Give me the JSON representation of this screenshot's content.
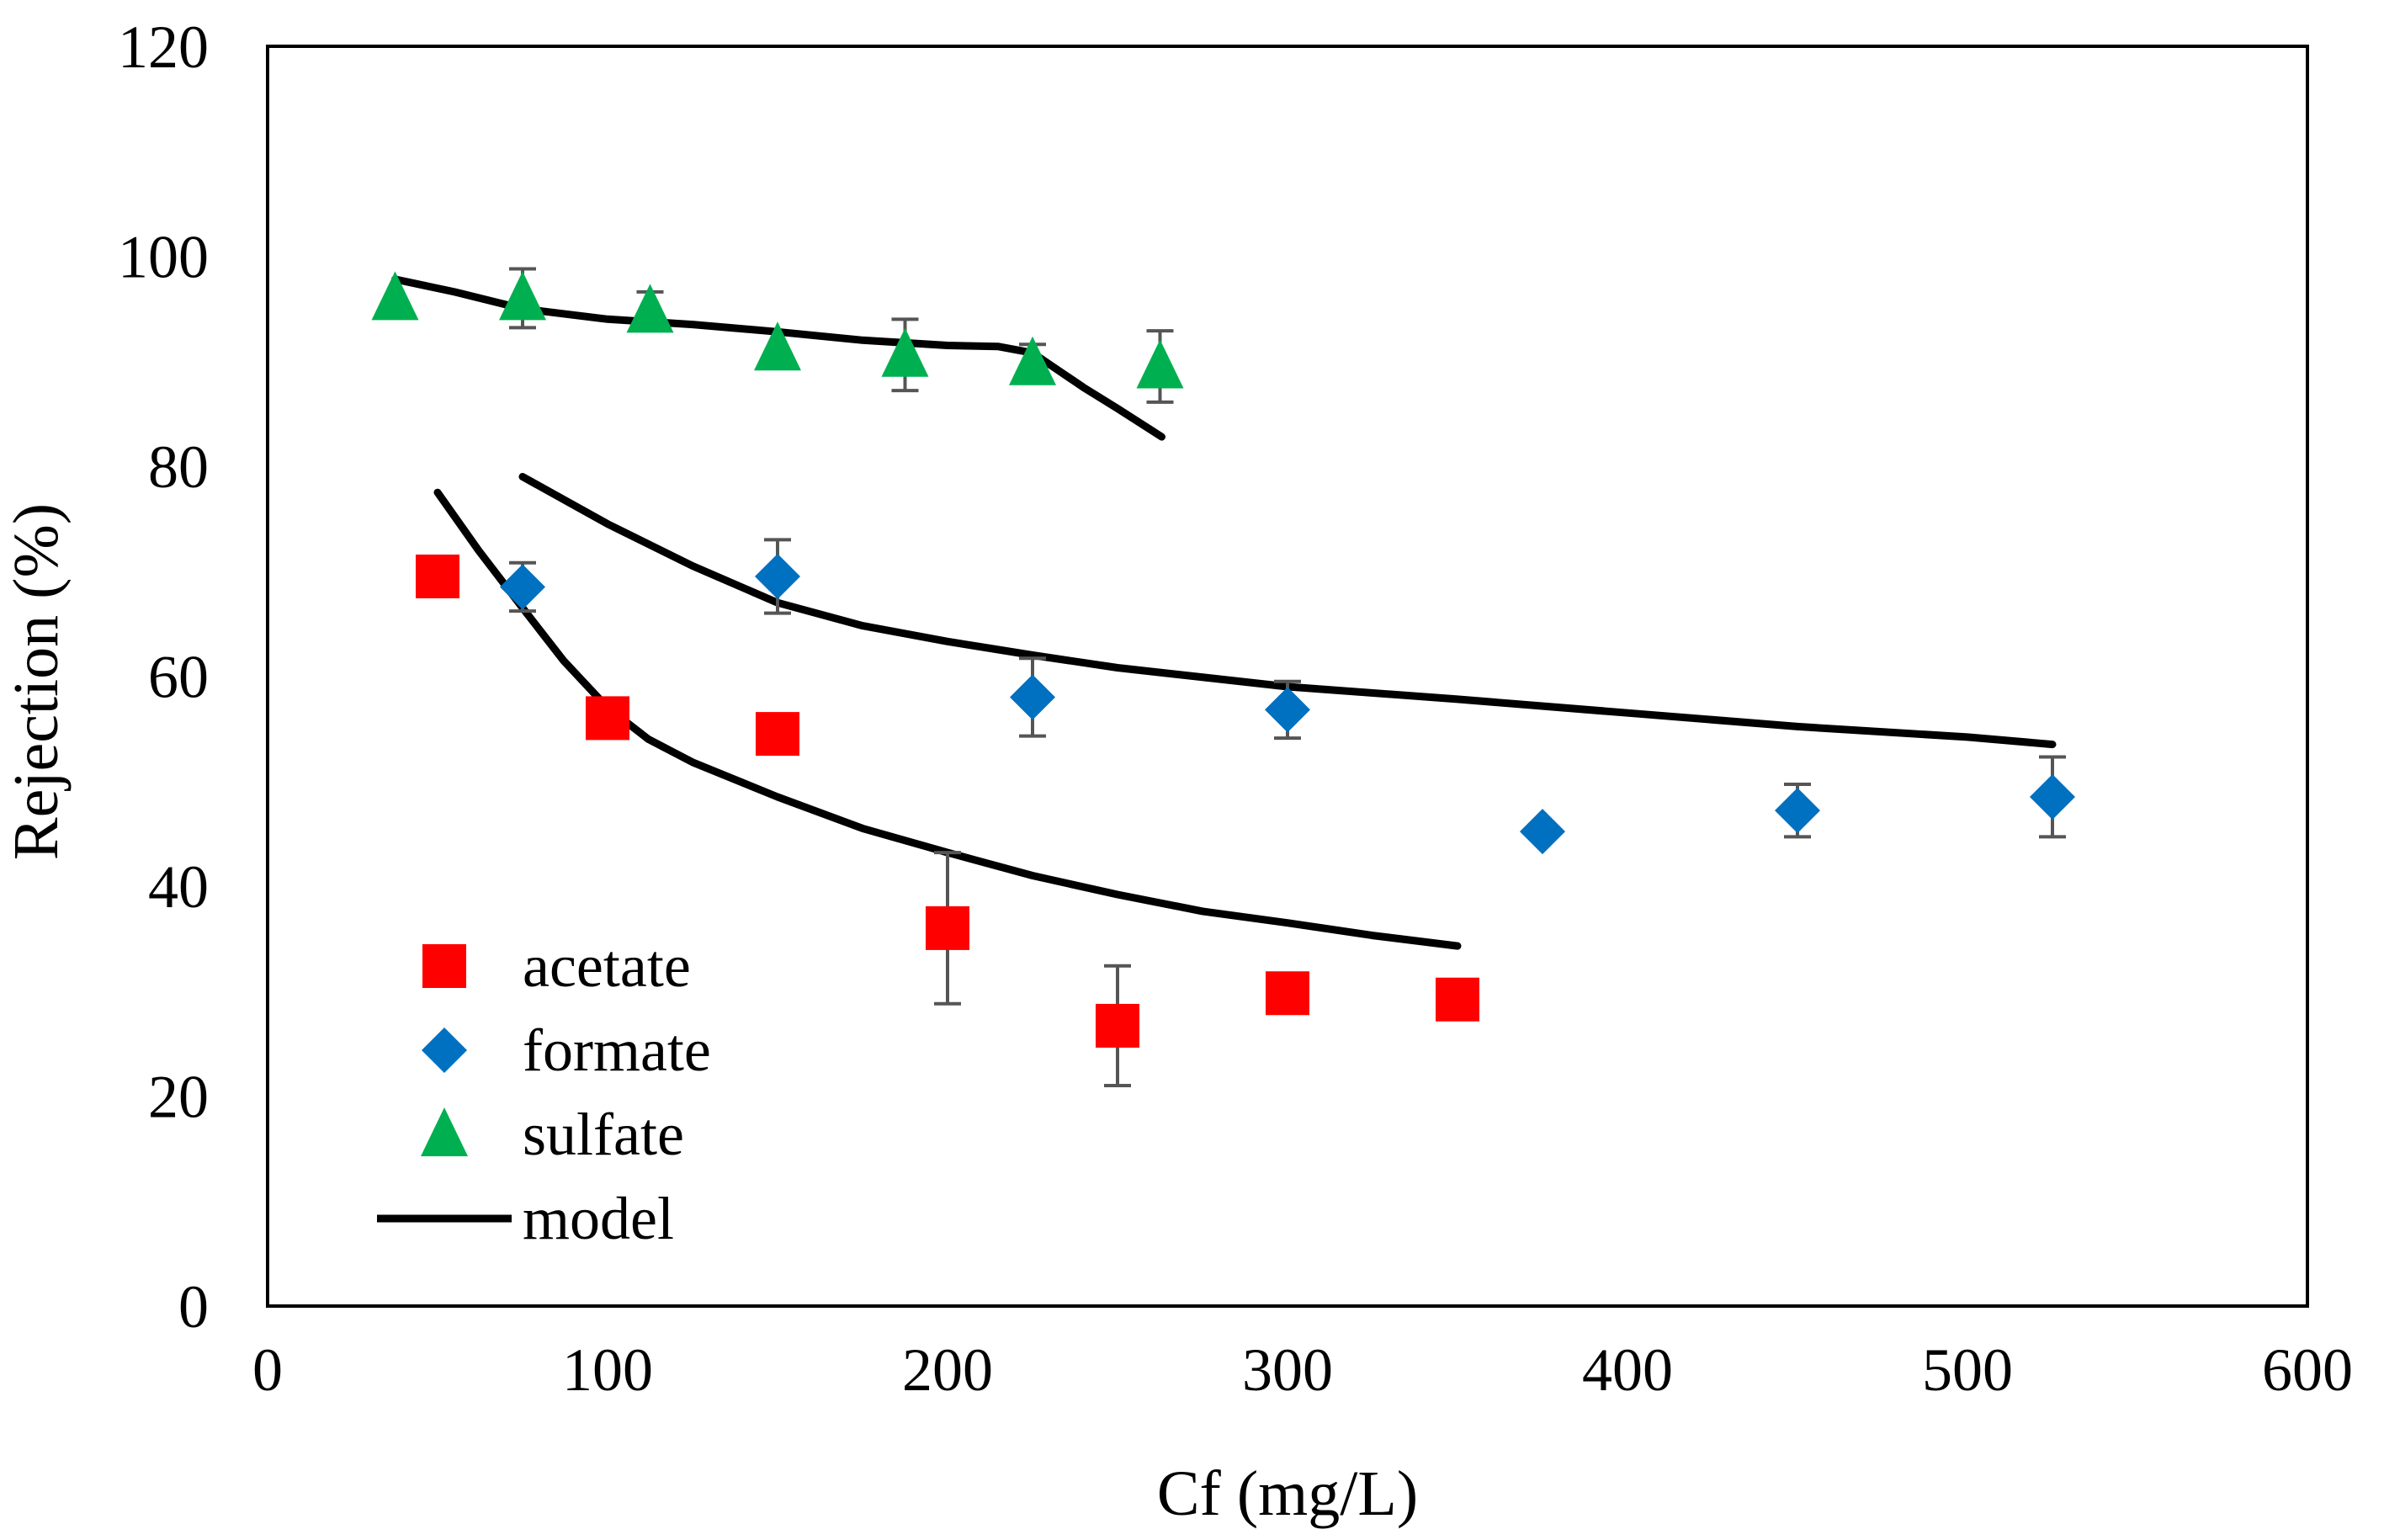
{
  "chart_data": {
    "type": "scatter",
    "title": "",
    "xlabel": "Cf (mg/L)",
    "ylabel": "Rejection (%)",
    "xlim": [
      0,
      600
    ],
    "ylim": [
      0,
      120
    ],
    "xticks": [
      0,
      100,
      200,
      300,
      400,
      500,
      600
    ],
    "yticks": [
      0,
      20,
      40,
      60,
      80,
      100,
      120
    ],
    "xtick_labels": [
      "0",
      "100",
      "200",
      "300",
      "400",
      "500",
      "600"
    ],
    "ytick_labels": [
      "0",
      "20",
      "40",
      "60",
      "80",
      "100",
      "120"
    ],
    "grid": false,
    "legend_position": "bottom-left",
    "series": [
      {
        "name": "acetate",
        "marker": "square",
        "color": "#ff0000",
        "error_color": "#555555",
        "points": [
          {
            "x": 50,
            "y": 69.5,
            "err": 0
          },
          {
            "x": 100,
            "y": 56,
            "err": 0
          },
          {
            "x": 150,
            "y": 54.5,
            "err": 0
          },
          {
            "x": 200,
            "y": 36,
            "err": 7.2
          },
          {
            "x": 250,
            "y": 26.7,
            "err": 5.7
          },
          {
            "x": 300,
            "y": 29.8,
            "err": 0
          },
          {
            "x": 350,
            "y": 29.2,
            "err": 0
          }
        ]
      },
      {
        "name": "formate",
        "marker": "diamond",
        "color": "#0070c0",
        "error_color": "#555555",
        "points": [
          {
            "x": 75,
            "y": 68.5,
            "err": 2.3
          },
          {
            "x": 150,
            "y": 69.5,
            "err": 3.5
          },
          {
            "x": 225,
            "y": 58,
            "err": 3.7
          },
          {
            "x": 300,
            "y": 56.8,
            "err": 2.7
          },
          {
            "x": 375,
            "y": 45.2,
            "err": 0
          },
          {
            "x": 450,
            "y": 47.2,
            "err": 2.5
          },
          {
            "x": 525,
            "y": 48.5,
            "err": 3.8
          }
        ]
      },
      {
        "name": "sulfate",
        "marker": "triangle",
        "color": "#00b050",
        "error_color": "#555555",
        "points": [
          {
            "x": 37.5,
            "y": 96,
            "err": 0
          },
          {
            "x": 75,
            "y": 96,
            "err": 2.8
          },
          {
            "x": 112.5,
            "y": 94.8,
            "err": 1.8
          },
          {
            "x": 150,
            "y": 91.2,
            "err": 0
          },
          {
            "x": 187.5,
            "y": 90.6,
            "err": 3.4
          },
          {
            "x": 225,
            "y": 89.8,
            "err": 1.8
          },
          {
            "x": 262.5,
            "y": 89.5,
            "err": 3.4
          }
        ]
      }
    ],
    "model": {
      "name": "model",
      "color": "#000000",
      "curves": [
        {
          "for": "sulfate",
          "points": [
            [
              37.5,
              97.8
            ],
            [
              55,
              96.6
            ],
            [
              75,
              95
            ],
            [
              100,
              94
            ],
            [
              125,
              93.5
            ],
            [
              150,
              92.8
            ],
            [
              175,
              92
            ],
            [
              200,
              91.5
            ],
            [
              215,
              91.4
            ],
            [
              225,
              90.8
            ],
            [
              240,
              87.5
            ],
            [
              250,
              85.5
            ],
            [
              263,
              82.8
            ]
          ]
        },
        {
          "for": "formate",
          "points": [
            [
              75,
              79
            ],
            [
              100,
              74.5
            ],
            [
              125,
              70.5
            ],
            [
              150,
              67
            ],
            [
              175,
              64.8
            ],
            [
              200,
              63.3
            ],
            [
              225,
              62
            ],
            [
              250,
              60.8
            ],
            [
              300,
              59
            ],
            [
              350,
              57.8
            ],
            [
              400,
              56.5
            ],
            [
              450,
              55.2
            ],
            [
              500,
              54.2
            ],
            [
              525,
              53.5
            ]
          ]
        },
        {
          "for": "acetate",
          "points": [
            [
              50,
              77.5
            ],
            [
              62,
              72
            ],
            [
              75,
              66.5
            ],
            [
              87,
              61.5
            ],
            [
              100,
              57
            ],
            [
              112,
              54
            ],
            [
              125,
              51.8
            ],
            [
              150,
              48.5
            ],
            [
              175,
              45.5
            ],
            [
              200,
              43.2
            ],
            [
              225,
              41
            ],
            [
              250,
              39.2
            ],
            [
              275,
              37.6
            ],
            [
              300,
              36.5
            ],
            [
              325,
              35.3
            ],
            [
              350,
              34.3
            ]
          ]
        }
      ]
    },
    "legend": [
      {
        "label": "acetate",
        "marker": "square",
        "color": "#ff0000"
      },
      {
        "label": "formate",
        "marker": "diamond",
        "color": "#0070c0"
      },
      {
        "label": "sulfate",
        "marker": "triangle",
        "color": "#00b050"
      },
      {
        "label": "model",
        "marker": "line",
        "color": "#000000"
      }
    ]
  }
}
